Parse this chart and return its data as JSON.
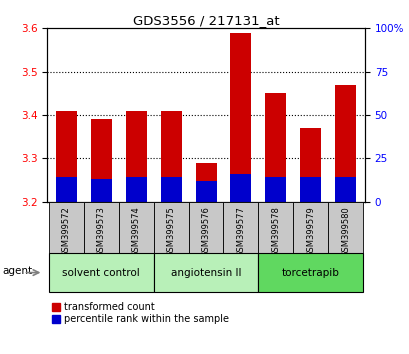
{
  "title": "GDS3556 / 217131_at",
  "samples": [
    "GSM399572",
    "GSM399573",
    "GSM399574",
    "GSM399575",
    "GSM399576",
    "GSM399577",
    "GSM399578",
    "GSM399579",
    "GSM399580"
  ],
  "transformed_count": [
    3.41,
    3.39,
    3.41,
    3.41,
    3.29,
    3.59,
    3.45,
    3.37,
    3.47
  ],
  "percentile_values": [
    14,
    13,
    14,
    14,
    12,
    16,
    14,
    14,
    14
  ],
  "baseline": 3.2,
  "ylim_left": [
    3.2,
    3.6
  ],
  "yticks_left": [
    3.2,
    3.3,
    3.4,
    3.5,
    3.6
  ],
  "grid_yticks": [
    3.3,
    3.4,
    3.5
  ],
  "ylim_right": [
    0,
    100
  ],
  "yticks_right": [
    0,
    25,
    50,
    75,
    100
  ],
  "yticklabels_right": [
    "0",
    "25",
    "50",
    "75",
    "100%"
  ],
  "bar_color_red": "#cc0000",
  "bar_color_blue": "#0000cc",
  "plot_bg": "#ffffff",
  "sample_bg": "#c8c8c8",
  "group_bounds": [
    [
      0,
      2,
      "solvent control",
      "#b8f0b8"
    ],
    [
      3,
      5,
      "angiotensin II",
      "#b8f0b8"
    ],
    [
      6,
      8,
      "torcetrapib",
      "#60d860"
    ]
  ],
  "agent_label": "agent",
  "legend_red": "transformed count",
  "legend_blue": "percentile rank within the sample",
  "bar_width": 0.6
}
